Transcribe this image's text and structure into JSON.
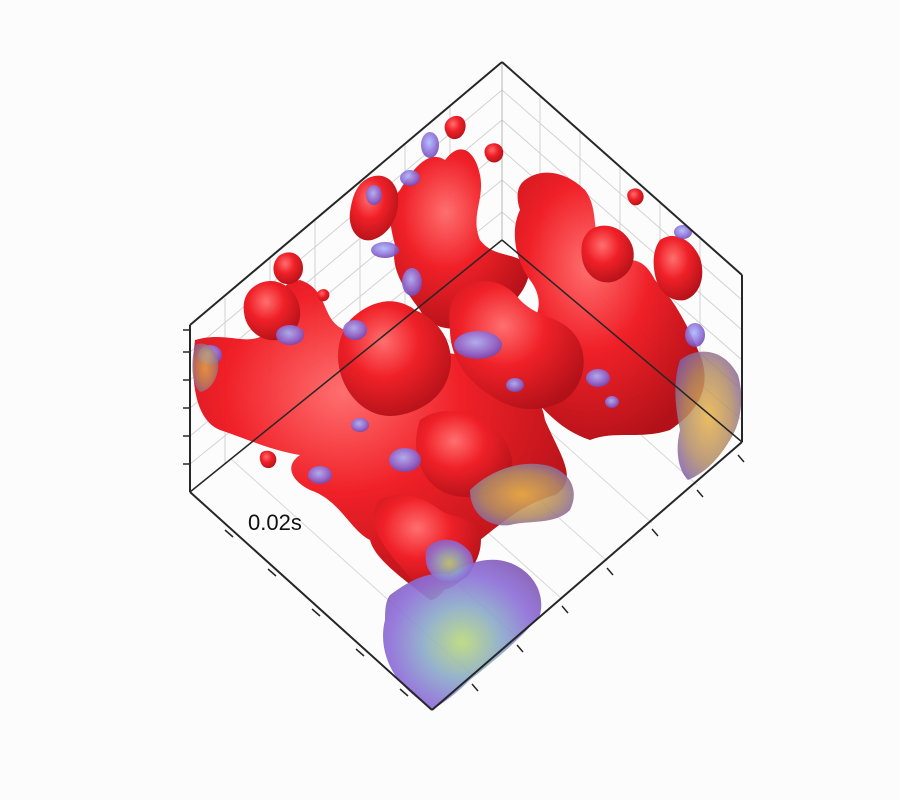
{
  "figure": {
    "time_label": "0.02s",
    "colors": {
      "background": "#fcfcfc",
      "axes": "#2a2a2a",
      "grid": "#c8c8c8",
      "isosurface_primary": "#e01018",
      "isosurface_secondary": "#8a6ad8",
      "isosurface_tertiary": "#9bbf6a",
      "isosurface_warm": "#e0a030"
    },
    "description_tags": [
      "3d-volume-render",
      "isosurface",
      "perspective-box"
    ]
  }
}
